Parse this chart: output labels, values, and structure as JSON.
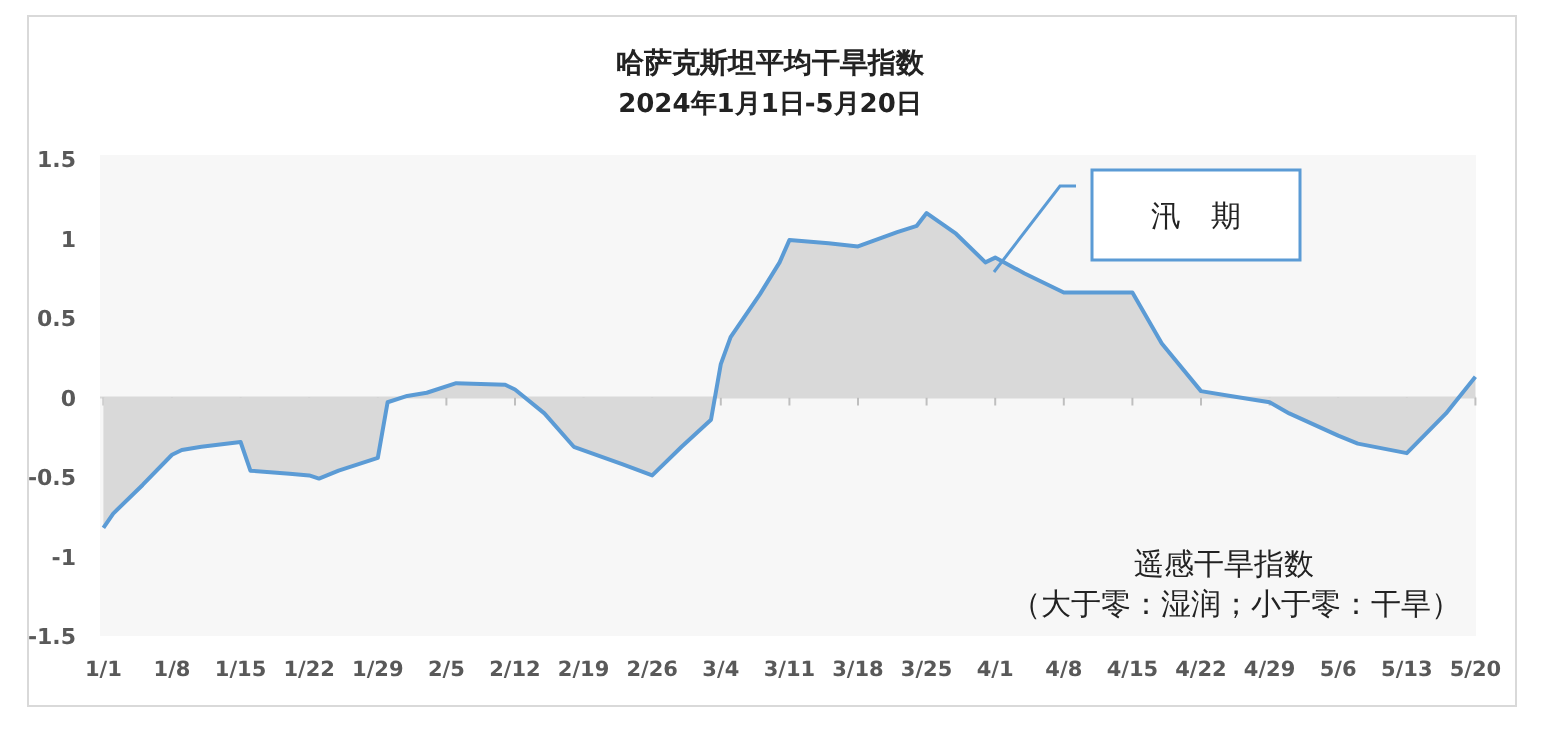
{
  "chart_data": {
    "type": "area",
    "title": "哈萨克斯坦平均干旱指数",
    "subtitle": "2024年1月1日-5月20日",
    "x": [
      "2024-01-01",
      "2024-01-02",
      "2024-01-05",
      "2024-01-08",
      "2024-01-09",
      "2024-01-11",
      "2024-01-15",
      "2024-01-16",
      "2024-01-20",
      "2024-01-22",
      "2024-01-23",
      "2024-01-25",
      "2024-01-29",
      "2024-01-30",
      "2024-02-01",
      "2024-02-03",
      "2024-02-06",
      "2024-02-11",
      "2024-02-12",
      "2024-02-15",
      "2024-02-18",
      "2024-02-23",
      "2024-02-26",
      "2024-02-29",
      "2024-03-03",
      "2024-03-04",
      "2024-03-05",
      "2024-03-08",
      "2024-03-10",
      "2024-03-11",
      "2024-03-15",
      "2024-03-18",
      "2024-03-22",
      "2024-03-24",
      "2024-03-25",
      "2024-03-28",
      "2024-03-31",
      "2024-04-01",
      "2024-04-04",
      "2024-04-08",
      "2024-04-12",
      "2024-04-15",
      "2024-04-18",
      "2024-04-22",
      "2024-04-25",
      "2024-04-29",
      "2024-05-01",
      "2024-05-06",
      "2024-05-08",
      "2024-05-13",
      "2024-05-17",
      "2024-05-20"
    ],
    "series": [
      {
        "color": "#5b9bd5",
        "values": [
          -0.82,
          -0.73,
          -0.55,
          -0.36,
          -0.33,
          -0.31,
          -0.28,
          -0.46,
          -0.48,
          -0.49,
          -0.51,
          -0.46,
          -0.38,
          -0.03,
          0.01,
          0.03,
          0.09,
          0.08,
          0.05,
          -0.1,
          -0.31,
          -0.42,
          -0.49,
          -0.31,
          -0.14,
          0.21,
          0.38,
          0.65,
          0.85,
          0.99,
          0.97,
          0.95,
          1.04,
          1.08,
          1.16,
          1.03,
          0.85,
          0.88,
          0.78,
          0.66,
          0.66,
          0.66,
          0.34,
          0.04,
          0.01,
          -0.03,
          -0.1,
          -0.24,
          -0.29,
          -0.35,
          -0.1,
          0.13
        ]
      }
    ],
    "xlim": [
      "2024-01-01",
      "2024-05-20"
    ],
    "xticks": [
      {
        "value": "2024-01-01",
        "label": "1/1"
      },
      {
        "value": "2024-01-08",
        "label": "1/8"
      },
      {
        "value": "2024-01-15",
        "label": "1/15"
      },
      {
        "value": "2024-01-22",
        "label": "1/22"
      },
      {
        "value": "2024-01-29",
        "label": "1/29"
      },
      {
        "value": "2024-02-05",
        "label": "2/5"
      },
      {
        "value": "2024-02-12",
        "label": "2/12"
      },
      {
        "value": "2024-02-19",
        "label": "2/19"
      },
      {
        "value": "2024-02-26",
        "label": "2/26"
      },
      {
        "value": "2024-03-04",
        "label": "3/4"
      },
      {
        "value": "2024-03-11",
        "label": "3/11"
      },
      {
        "value": "2024-03-18",
        "label": "3/18"
      },
      {
        "value": "2024-03-25",
        "label": "3/25"
      },
      {
        "value": "2024-04-01",
        "label": "4/1"
      },
      {
        "value": "2024-04-08",
        "label": "4/8"
      },
      {
        "value": "2024-04-15",
        "label": "4/15"
      },
      {
        "value": "2024-04-22",
        "label": "4/22"
      },
      {
        "value": "2024-04-29",
        "label": "4/29"
      },
      {
        "value": "2024-05-06",
        "label": "5/6"
      },
      {
        "value": "2024-05-13",
        "label": "5/13"
      },
      {
        "value": "2024-05-20",
        "label": "5/20"
      }
    ],
    "ylim": [
      -1.5,
      1.5
    ],
    "yticks": [
      -1.5,
      -1,
      -0.5,
      0,
      0.5,
      1,
      1.5
    ],
    "annotations": [
      "汛　期",
      "遥感干旱指数",
      "（大于零：湿润；小于零：干旱）"
    ]
  }
}
